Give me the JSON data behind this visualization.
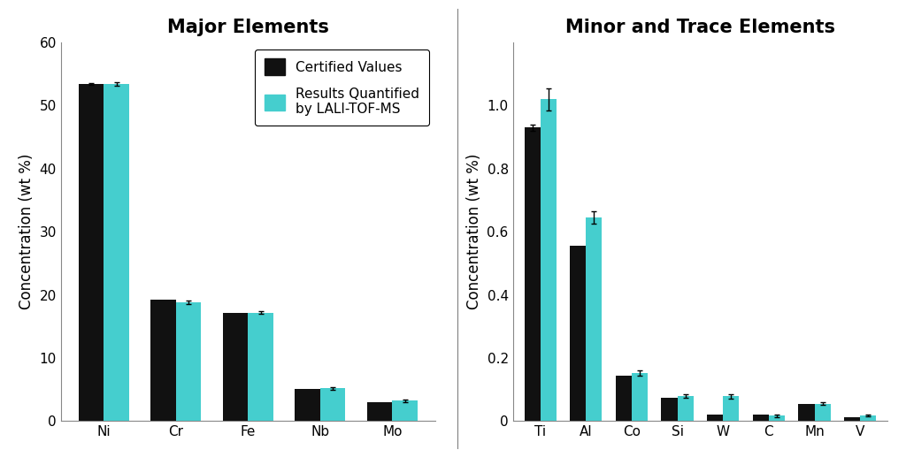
{
  "left_title": "Major Elements",
  "right_title": "Minor and Trace Elements",
  "ylabel": "Concentration (wt %)",
  "bar_color_certified": "#111111",
  "bar_color_lali": "#45CECE",
  "legend_label_certified": "Certified Values",
  "legend_label_lali": "Results Quantified\nby LALI-TOF-MS",
  "left": {
    "categories": [
      "Ni",
      "Cr",
      "Fe",
      "Nb",
      "Mo"
    ],
    "certified_values": [
      53.4,
      19.2,
      17.1,
      5.1,
      3.0
    ],
    "lali_values": [
      53.4,
      18.8,
      17.2,
      5.2,
      3.2
    ],
    "lali_errors": [
      0.3,
      0.25,
      0.25,
      0.2,
      0.15
    ],
    "certified_errors": [
      0.2,
      0.0,
      0.0,
      0.0,
      0.0
    ],
    "ylim": [
      0,
      60
    ],
    "yticks": [
      0,
      10,
      20,
      30,
      40,
      50,
      60
    ]
  },
  "right": {
    "categories": [
      "Ti",
      "Al",
      "Co",
      "Si",
      "W",
      "C",
      "Mn",
      "V"
    ],
    "certified_values": [
      0.93,
      0.555,
      0.145,
      0.075,
      0.02,
      0.02,
      0.055,
      0.012
    ],
    "lali_values": [
      1.02,
      0.645,
      0.153,
      0.08,
      0.078,
      0.017,
      0.055,
      0.018
    ],
    "lali_errors": [
      0.035,
      0.02,
      0.008,
      0.005,
      0.006,
      0.004,
      0.004,
      0.003
    ],
    "certified_errors": [
      0.01,
      0.0,
      0.0,
      0.0,
      0.0,
      0.0,
      0.0,
      0.0
    ],
    "ylim": [
      0,
      1.2
    ],
    "yticks": [
      0,
      0.2,
      0.4,
      0.6,
      0.8,
      1.0
    ]
  },
  "background_color": "#ffffff",
  "bar_width": 0.35,
  "title_fontsize": 15,
  "axis_label_fontsize": 12,
  "tick_fontsize": 11,
  "legend_fontsize": 11
}
